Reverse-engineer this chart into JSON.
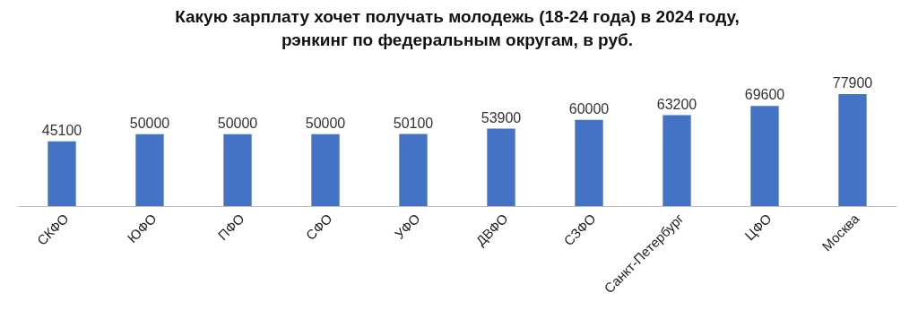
{
  "chart_data": {
    "type": "bar",
    "title": "Какую зарплату хочет получать молодежь (18-24 года) в 2024 году,\nрэнкинг по федеральным округам, в руб.",
    "categories": [
      "СКФО",
      "ЮФО",
      "ПФО",
      "СФО",
      "УФО",
      "ДВФО",
      "СЗФО",
      "Санкт-Петербург",
      "ЦФО",
      "Москва"
    ],
    "values": [
      45100,
      50000,
      50000,
      50000,
      50100,
      53900,
      60000,
      63200,
      69600,
      77900
    ],
    "color": "#4472c4",
    "data_labels": true,
    "grid": false,
    "tick_labels": "x"
  }
}
